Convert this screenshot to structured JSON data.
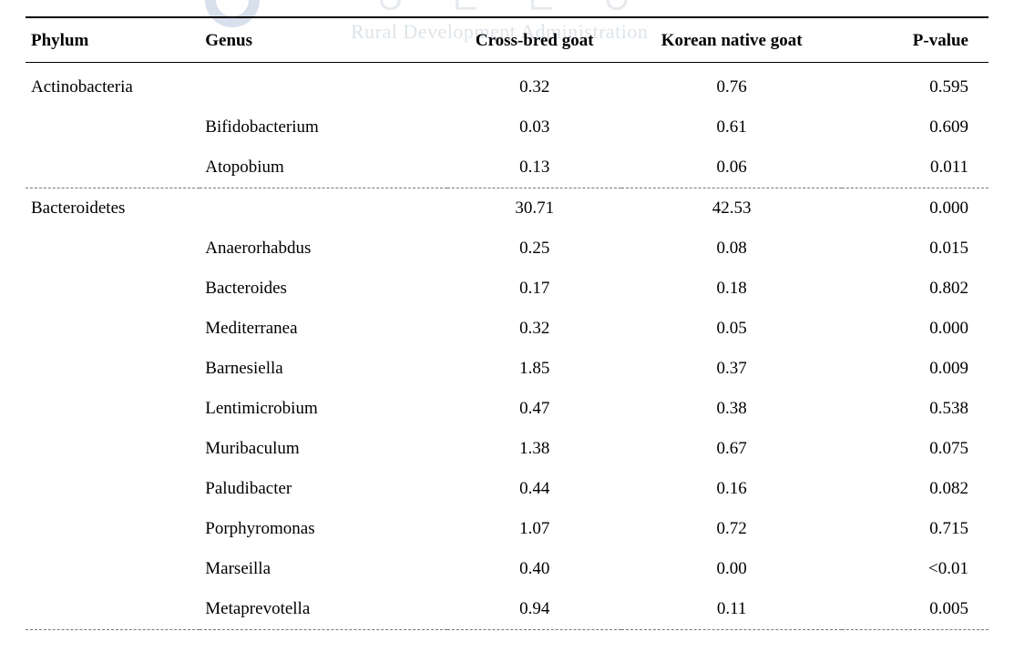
{
  "watermark": {
    "korean_text": "ㅇ ㄴ ㄴ ㅇ",
    "english_text": "Rural Development Administration"
  },
  "table": {
    "columns": {
      "phylum": "Phylum",
      "genus": "Genus",
      "cross": "Cross-bred goat",
      "native": "Korean  native  goat",
      "pvalue": "P-value"
    },
    "rows": [
      {
        "phylum": "Actinobacteria",
        "genus": "",
        "cross": "0.32",
        "native": "0.76",
        "pvalue": "0.595",
        "spacer": true
      },
      {
        "phylum": "",
        "genus": "Bifidobacterium",
        "cross": "0.03",
        "native": "0.61",
        "pvalue": "0.609"
      },
      {
        "phylum": "",
        "genus": "Atopobium",
        "cross": "0.13",
        "native": "0.06",
        "pvalue": "0.011",
        "group_end": true
      },
      {
        "phylum": "Bacteroidetes",
        "genus": "",
        "cross": "30.71",
        "native": "42.53",
        "pvalue": "0.000"
      },
      {
        "phylum": "",
        "genus": "Anaerorhabdus",
        "cross": "0.25",
        "native": "0.08",
        "pvalue": "0.015"
      },
      {
        "phylum": "",
        "genus": "Bacteroides",
        "cross": "0.17",
        "native": "0.18",
        "pvalue": "0.802"
      },
      {
        "phylum": "",
        "genus": "Mediterranea",
        "cross": "0.32",
        "native": "0.05",
        "pvalue": "0.000"
      },
      {
        "phylum": "",
        "genus": "Barnesiella",
        "cross": "1.85",
        "native": "0.37",
        "pvalue": "0.009"
      },
      {
        "phylum": "",
        "genus": "Lentimicrobium",
        "cross": "0.47",
        "native": "0.38",
        "pvalue": "0.538"
      },
      {
        "phylum": "",
        "genus": "Muribaculum",
        "cross": "1.38",
        "native": "0.67",
        "pvalue": "0.075"
      },
      {
        "phylum": "",
        "genus": "Paludibacter",
        "cross": "0.44",
        "native": "0.16",
        "pvalue": "0.082"
      },
      {
        "phylum": "",
        "genus": "Porphyromonas",
        "cross": "1.07",
        "native": "0.72",
        "pvalue": "0.715"
      },
      {
        "phylum": "",
        "genus": "Marseilla",
        "cross": "0.40",
        "native": "0.00",
        "pvalue": "<0.01"
      },
      {
        "phylum": "",
        "genus": "Metaprevotella",
        "cross": "0.94",
        "native": "0.11",
        "pvalue": "0.005",
        "last": true
      }
    ],
    "colors": {
      "text": "#000000",
      "border_solid": "#000000",
      "border_dashed": "#777777",
      "background": "#ffffff",
      "watermark_text": "#b8c4d0"
    },
    "typography": {
      "font_family": "Times New Roman",
      "header_fontsize_pt": 14,
      "body_fontsize_pt": 14,
      "header_weight": "bold"
    }
  }
}
